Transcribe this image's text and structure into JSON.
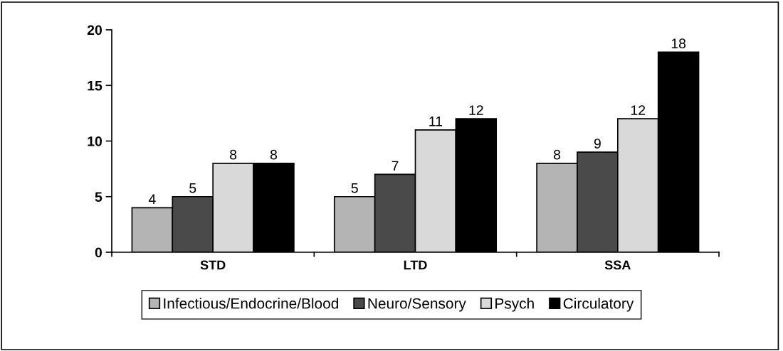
{
  "chart_data": {
    "type": "bar",
    "categories": [
      "STD",
      "LTD",
      "SSA"
    ],
    "series": [
      {
        "name": "Infectious/Endocrine/Blood",
        "color": "#b4b4b4",
        "values": [
          4,
          5,
          8
        ]
      },
      {
        "name": "Neuro/Sensory",
        "color": "#4a4a4a",
        "values": [
          5,
          7,
          9
        ]
      },
      {
        "name": "Psych",
        "color": "#d9d9d9",
        "values": [
          8,
          11,
          12
        ]
      },
      {
        "name": "Circulatory",
        "color": "#000000",
        "values": [
          8,
          12,
          18
        ]
      }
    ],
    "ylim": [
      0,
      20
    ],
    "yticks": [
      0,
      5,
      10,
      15,
      20
    ],
    "data_labels": true,
    "grid": false,
    "legend": "bottom"
  }
}
